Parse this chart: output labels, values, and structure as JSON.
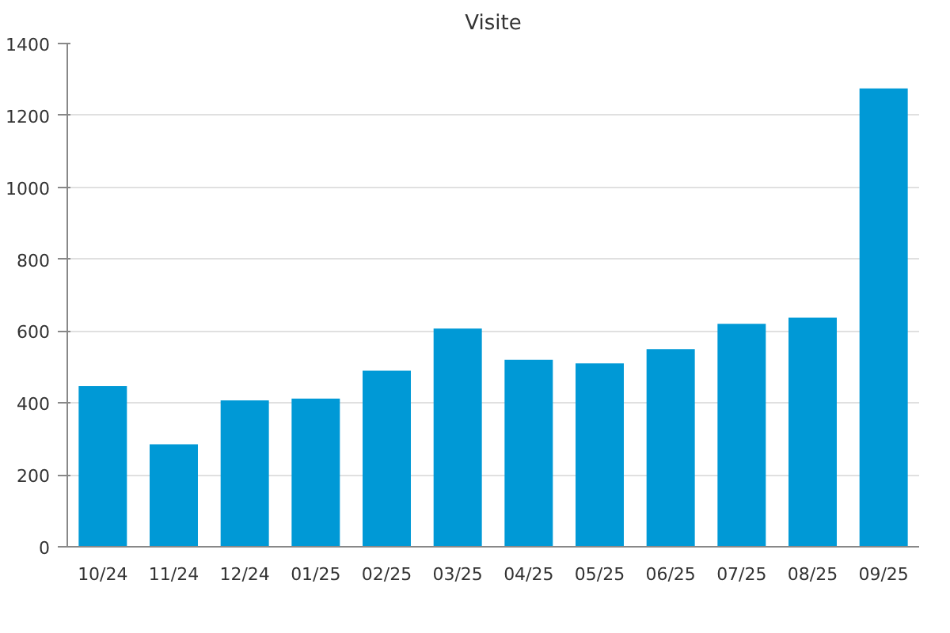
{
  "chart_data": {
    "type": "bar",
    "title": "Visite",
    "categories": [
      "10/24",
      "11/24",
      "12/24",
      "01/25",
      "02/25",
      "03/25",
      "04/25",
      "05/25",
      "06/25",
      "07/25",
      "08/25",
      "09/25"
    ],
    "values": [
      447,
      285,
      407,
      412,
      490,
      607,
      520,
      510,
      550,
      620,
      637,
      1275
    ],
    "color": "#0099d6",
    "ylim": [
      0,
      1400
    ],
    "yticks": [
      0,
      200,
      400,
      600,
      800,
      1000,
      1200,
      1400
    ],
    "grid": "y"
  }
}
